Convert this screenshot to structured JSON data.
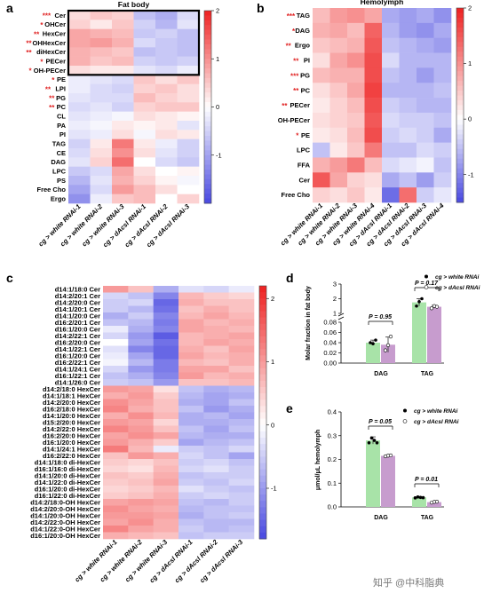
{
  "panel_labels": {
    "a": "a",
    "b": "b",
    "c": "c",
    "d": "d",
    "e": "e"
  },
  "watermark": "知乎 @中科脂典",
  "colors": {
    "low": "#4848e0",
    "mid": "#ffffff",
    "high": "#ee2020",
    "bar_green": "#a8e3a8",
    "bar_purple": "#c79cce",
    "star": "#e02020"
  },
  "chart_data": [
    {
      "id": "a",
      "type": "heatmap",
      "title": "Fat body",
      "columns": [
        "cg > white RNAi-1",
        "cg > white RNAi-2",
        "cg > white RNAi-3",
        "cg > dAcsl RNAi-1",
        "cg > dAcsl RNAi-2",
        "cg > dAcsl RNAi-3"
      ],
      "rows": [
        "Cer",
        "OHCer",
        "HexCer",
        "OHHexCer",
        "diHexCer",
        "PECer",
        "OH-PECer",
        "PE",
        "LPI",
        "PG",
        "PC",
        "CL",
        "PA",
        "PI",
        "TAG",
        "CE",
        "DAG",
        "LPC",
        "PS",
        "Free Cho",
        "Ergo"
      ],
      "significance": [
        "***",
        "*",
        "**",
        "**",
        "**",
        "*",
        "*",
        "*",
        "**",
        "**",
        "**",
        "",
        "",
        "",
        "",
        "",
        "",
        "",
        "",
        "",
        ""
      ],
      "highlight_box_rows": [
        0,
        6
      ],
      "colorbar": {
        "ticks": [
          2,
          1,
          0,
          -1
        ],
        "range": [
          -2,
          2
        ]
      },
      "values": [
        [
          0.3,
          0.5,
          0.4,
          -0.7,
          -0.9,
          -0.4
        ],
        [
          0.4,
          0.2,
          0.5,
          -0.5,
          -0.8,
          -0.3
        ],
        [
          0.8,
          0.7,
          0.6,
          -0.6,
          -0.5,
          -0.7
        ],
        [
          0.8,
          0.9,
          0.7,
          -0.4,
          -0.6,
          -0.7
        ],
        [
          0.7,
          0.6,
          0.5,
          -0.7,
          -0.6,
          -0.7
        ],
        [
          0.7,
          0.5,
          0.6,
          -0.5,
          -0.6,
          -0.5
        ],
        [
          0.3,
          0.2,
          0.2,
          -0.3,
          -0.4,
          -0.2
        ],
        [
          -0.2,
          -0.3,
          -0.4,
          0.5,
          0.3,
          0.5
        ],
        [
          -0.2,
          -0.4,
          -0.5,
          0.4,
          0.5,
          0.3
        ],
        [
          -0.3,
          -0.4,
          -0.4,
          0.6,
          0.4,
          0.3
        ],
        [
          -0.4,
          -0.3,
          -0.5,
          0.4,
          0.5,
          0.5
        ],
        [
          -0.3,
          -0.2,
          -0.1,
          0.3,
          0.2,
          0.1
        ],
        [
          -0.2,
          -0.1,
          0.2,
          0.1,
          0.2,
          -0.3
        ],
        [
          -0.3,
          -0.2,
          0.3,
          -0.1,
          0.3,
          0.2
        ],
        [
          -0.5,
          0.2,
          1.2,
          0.2,
          -0.2,
          -0.5
        ],
        [
          -0.4,
          0.3,
          1.0,
          0.3,
          -0.3,
          -0.5
        ],
        [
          -0.3,
          0.4,
          1.3,
          0.0,
          -0.4,
          -0.6
        ],
        [
          -0.6,
          -0.4,
          0.8,
          0.3,
          0.0,
          0.1
        ],
        [
          -0.8,
          -0.3,
          0.7,
          0.4,
          0.1,
          -0.1
        ],
        [
          -1.0,
          -0.4,
          0.9,
          0.6,
          0.3,
          0.0
        ],
        [
          -1.2,
          -0.2,
          0.5,
          0.6,
          0.0,
          0.4
        ]
      ]
    },
    {
      "id": "b",
      "type": "heatmap",
      "title": "Hemolymph",
      "columns": [
        "cg > white RNAi-1",
        "cg > white RNAi-2",
        "cg > white RNAi-3",
        "cg > white RNAi-4",
        "cg > dAcsl RNAi-1",
        "cg > dAcsl RNAi-2",
        "cg > dAcsl RNAi-3",
        "cg > dAcsl RNAi-4"
      ],
      "rows": [
        "TAG",
        "DAG",
        "Ergo",
        "PI",
        "PG",
        "PC",
        "PECer",
        "OH-PECer",
        "PE",
        "LPC",
        "FFA",
        "Cer",
        "Free Cho"
      ],
      "significance": [
        "***",
        "*",
        "**",
        "**",
        "***",
        "**",
        "**",
        "",
        "*",
        "",
        "",
        "",
        ""
      ],
      "colorbar": {
        "ticks": [
          2,
          1,
          0,
          -1
        ],
        "range": [
          -1.5,
          2
        ]
      },
      "values": [
        [
          0.6,
          0.9,
          1.0,
          0.8,
          -0.7,
          -0.8,
          -0.7,
          -0.9
        ],
        [
          0.7,
          0.8,
          0.6,
          1.4,
          -0.6,
          -0.8,
          -0.9,
          -0.7
        ],
        [
          0.5,
          0.6,
          0.7,
          1.5,
          -0.5,
          -0.6,
          -0.7,
          -0.8
        ],
        [
          0.3,
          0.8,
          1.0,
          1.6,
          -0.3,
          -0.6,
          -0.6,
          -0.6
        ],
        [
          0.6,
          0.7,
          0.7,
          1.6,
          -0.5,
          -0.6,
          -0.8,
          -0.6
        ],
        [
          0.3,
          0.5,
          0.8,
          1.7,
          -0.6,
          -0.6,
          -0.6,
          -0.5
        ],
        [
          0.2,
          0.4,
          0.6,
          1.6,
          -0.4,
          -0.5,
          -0.6,
          -0.6
        ],
        [
          0.3,
          0.4,
          0.5,
          1.5,
          -0.3,
          -0.4,
          -0.4,
          -0.5
        ],
        [
          0.2,
          0.3,
          0.6,
          1.6,
          -0.4,
          -0.3,
          -0.4,
          -0.7
        ],
        [
          -0.5,
          0.2,
          0.5,
          1.2,
          -0.5,
          -0.5,
          -0.3,
          -0.4
        ],
        [
          0.7,
          0.9,
          1.2,
          0.6,
          -0.3,
          -0.2,
          -0.1,
          -0.5
        ],
        [
          1.5,
          0.8,
          0.4,
          0.3,
          -0.7,
          -0.5,
          -0.8,
          -0.4
        ],
        [
          0.4,
          0.3,
          0.5,
          0.2,
          -1.2,
          1.3,
          -0.4,
          -0.2
        ]
      ]
    },
    {
      "id": "c",
      "type": "heatmap",
      "columns": [
        "cg > white RNAi-1",
        "cg > white RNAi-2",
        "cg > white RNAi-3",
        "cg > dAcsl RNAi-1",
        "cg > dAcsl RNAi-2",
        "cg > dAcsl RNAi-3"
      ],
      "rows": [
        "d14:1/18:0 Cer",
        "d14:2/20:1 Cer",
        "d14:2/20:0 Cer",
        "d14:1/20:1 Cer",
        "d14:1/20:0 Cer",
        "d16:2/20:1 Cer",
        "d16:1/20:0 Cer",
        "d14:2/22:1 Cer",
        "d16:2/20:0 Cer",
        "d14:1/22:1 Cer",
        "d16:1/20:0 Cer",
        "d16:2/22:1 Cer",
        "d14:1/24:1 Cer",
        "d16:1/22:1 Cer",
        "d14:1/26:0 Cer",
        "d14:2/18:0 HexCer",
        "d14:1/18:1 HexCer",
        "d14:2/20:0 HexCer",
        "d16:2/18:0 HexCer",
        "d14:1/20:0 HexCer",
        "d15:2/20:0 HexCer",
        "d14:2/22:0 HexCer",
        "d16:2/20:0 HexCer",
        "d16:1/20:0 HexCer",
        "d14:1/24:1 HexCer",
        "d16:2/22:0 HexCer",
        "d14:1/18:0 di-HexCer",
        "d16:1/16:0 di-HexCer",
        "d14:1/20:0 di-HexCer",
        "d14:1/22:0 di-HexCer",
        "d16:1/20:0 di-HexCer",
        "d16:1/22:0 di-HexCer",
        "d14:2/18:0-OH HexCer",
        "d14:2/20:0-OH HexCer",
        "d14:1/20:0-OH HexCer",
        "d14:2/22:0-OH HexCer",
        "d14:1/22:0-OH HexCer",
        "d16:1/20:0-OH HexCer"
      ],
      "colorbar": {
        "ticks": [
          2,
          1,
          0,
          -1
        ],
        "range": [
          -1.8,
          2.2
        ]
      },
      "values": [
        [
          1.0,
          0.6,
          -0.8,
          -0.3,
          -0.4,
          -0.2
        ],
        [
          -0.4,
          -0.6,
          -1.2,
          0.7,
          0.5,
          0.4
        ],
        [
          -0.5,
          -0.4,
          -1.5,
          0.8,
          0.6,
          0.6
        ],
        [
          -0.5,
          -0.7,
          -1.4,
          0.6,
          0.8,
          0.6
        ],
        [
          -0.8,
          -0.5,
          -1.2,
          0.7,
          0.9,
          0.7
        ],
        [
          -0.6,
          -0.7,
          -1.3,
          0.9,
          0.7,
          0.8
        ],
        [
          -0.2,
          -0.8,
          -1.2,
          0.9,
          0.8,
          0.7
        ],
        [
          -0.4,
          -1.0,
          -1.6,
          0.7,
          0.8,
          0.9
        ],
        [
          0.0,
          -0.9,
          -1.4,
          0.7,
          0.9,
          0.8
        ],
        [
          -0.3,
          -1.2,
          -1.5,
          0.8,
          0.6,
          0.9
        ],
        [
          -0.2,
          -0.9,
          -1.5,
          0.9,
          0.7,
          0.8
        ],
        [
          -0.1,
          -0.7,
          -1.3,
          0.7,
          0.6,
          0.8
        ],
        [
          -0.4,
          -1.0,
          -1.3,
          0.9,
          0.9,
          0.6
        ],
        [
          -0.6,
          -0.8,
          -1.2,
          1.0,
          0.7,
          0.8
        ],
        [
          -0.5,
          -0.6,
          -1.0,
          0.6,
          0.6,
          0.7
        ],
        [
          1.0,
          0.9,
          0.3,
          -0.6,
          -0.8,
          -0.7
        ],
        [
          0.8,
          1.0,
          0.5,
          -0.7,
          -0.9,
          -0.8
        ],
        [
          1.1,
          0.9,
          0.6,
          -0.8,
          -0.9,
          -0.6
        ],
        [
          1.2,
          0.8,
          0.6,
          -0.6,
          -1.0,
          -0.8
        ],
        [
          0.8,
          1.1,
          0.7,
          -0.8,
          -0.7,
          -0.9
        ],
        [
          1.0,
          0.9,
          0.4,
          -0.8,
          -0.8,
          -0.7
        ],
        [
          1.2,
          1.0,
          0.6,
          -0.6,
          -0.9,
          -0.6
        ],
        [
          0.9,
          1.1,
          0.9,
          -0.7,
          -0.8,
          -0.8
        ],
        [
          1.0,
          0.8,
          0.5,
          -0.9,
          -0.7,
          -0.6
        ],
        [
          1.3,
          0.7,
          -0.2,
          -0.5,
          -0.6,
          -0.4
        ],
        [
          0.6,
          1.0,
          0.8,
          -0.4,
          -0.6,
          -0.9
        ],
        [
          0.5,
          0.4,
          0.6,
          -0.5,
          -0.4,
          -0.6
        ],
        [
          0.4,
          0.3,
          0.7,
          -0.4,
          -0.3,
          -0.5
        ],
        [
          0.6,
          0.5,
          0.8,
          -0.6,
          -0.5,
          -0.5
        ],
        [
          0.5,
          0.6,
          0.9,
          -0.5,
          -0.6,
          -0.4
        ],
        [
          0.4,
          0.5,
          0.7,
          -0.3,
          -0.5,
          -0.6
        ],
        [
          0.5,
          0.6,
          0.8,
          -0.5,
          -0.4,
          -0.5
        ],
        [
          0.9,
          1.0,
          0.9,
          -0.6,
          -0.7,
          -0.5
        ],
        [
          1.1,
          0.9,
          0.8,
          -0.7,
          -0.6,
          -0.6
        ],
        [
          1.0,
          1.0,
          0.9,
          -0.8,
          -0.6,
          -0.5
        ],
        [
          0.9,
          1.1,
          0.8,
          -0.6,
          -0.7,
          -0.7
        ],
        [
          1.2,
          0.9,
          0.8,
          -0.5,
          -0.7,
          -0.6
        ],
        [
          0.8,
          0.7,
          0.6,
          -0.6,
          -0.5,
          -0.5
        ]
      ]
    },
    {
      "id": "d",
      "type": "bar",
      "ylabel": "Molar fraction in fat body",
      "categories": [
        "DAG",
        "TAG"
      ],
      "y_axis": {
        "lower_segment": [
          0,
          0.08
        ],
        "lower_ticks": [
          0.0,
          0.02,
          0.04,
          0.06,
          0.08
        ],
        "upper_segment": [
          1,
          3
        ],
        "upper_ticks": [
          1,
          2,
          3
        ]
      },
      "legend": [
        "cg > white RNAi",
        "cg > dAcsl RNAi"
      ],
      "series": [
        {
          "name": "cg > white RNAi",
          "values": [
            0.04,
            1.75
          ],
          "errors": [
            0.005,
            0.25
          ],
          "points": [
            [
              0.04,
              0.038,
              0.045
            ],
            [
              1.5,
              1.8,
              2.0
            ]
          ]
        },
        {
          "name": "cg > dAcsl RNAi",
          "values": [
            0.036,
            1.45
          ],
          "errors": [
            0.015,
            0.1
          ],
          "points": [
            [
              0.025,
              0.035,
              0.052
            ],
            [
              1.35,
              1.5,
              1.45
            ]
          ]
        }
      ],
      "pvalues": [
        {
          "category": "DAG",
          "text": "P = 0.95"
        },
        {
          "category": "TAG",
          "text": "P = 0.17"
        }
      ]
    },
    {
      "id": "e",
      "type": "bar",
      "ylabel": "μmol/μL hemolymph",
      "categories": [
        "DAG",
        "TAG"
      ],
      "ylim": [
        0,
        0.4
      ],
      "yticks": [
        0.0,
        0.1,
        0.2,
        0.3,
        0.4
      ],
      "legend": [
        "cg > white RNAi",
        "cg > dAcsl RNAi"
      ],
      "series": [
        {
          "name": "cg > white RNAi",
          "values": [
            0.28,
            0.04
          ],
          "errors": [
            0.015,
            0.003
          ],
          "points": [
            [
              0.27,
              0.29,
              0.28,
              0.27
            ],
            [
              0.038,
              0.042,
              0.04,
              0.039
            ]
          ]
        },
        {
          "name": "cg > dAcsl RNAi",
          "values": [
            0.215,
            0.02
          ],
          "errors": [
            0.004,
            0.002
          ],
          "points": [
            [
              0.213,
              0.216,
              0.217
            ],
            [
              0.018,
              0.021,
              0.022
            ]
          ]
        }
      ],
      "pvalues": [
        {
          "category": "DAG",
          "text": "P = 0.05"
        },
        {
          "category": "TAG",
          "text": "P = 0.01"
        }
      ]
    }
  ]
}
